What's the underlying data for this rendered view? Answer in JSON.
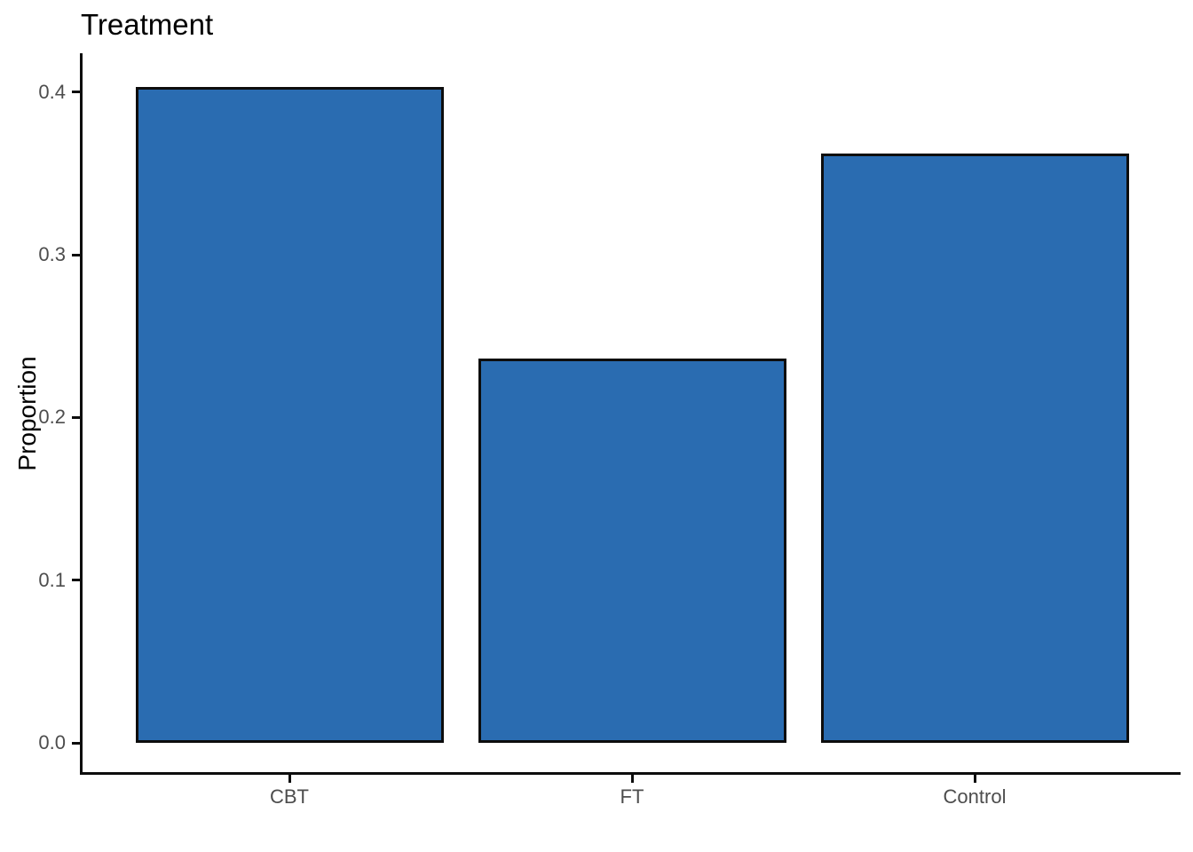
{
  "figure": {
    "background": "#ffffff"
  },
  "chart_data": {
    "type": "bar",
    "title": "Treatment",
    "xlabel": "",
    "ylabel": "Proportion",
    "categories": [
      "CBT",
      "FT",
      "Control"
    ],
    "values": [
      0.403,
      0.236,
      0.362
    ],
    "yticks": [
      0.0,
      0.1,
      0.2,
      0.3,
      0.4
    ],
    "ytick_labels": [
      "0.0",
      "0.1",
      "0.2",
      "0.3",
      "0.4"
    ],
    "ylim": [
      -0.021,
      0.423
    ],
    "grid": false,
    "legend": false,
    "bar_fill": "#2a6cb1",
    "bar_stroke": "#0d0d0d",
    "axis_color": "#0d0d0d",
    "tick_label_color": "#4d4d4d",
    "title_color": "#000000"
  }
}
